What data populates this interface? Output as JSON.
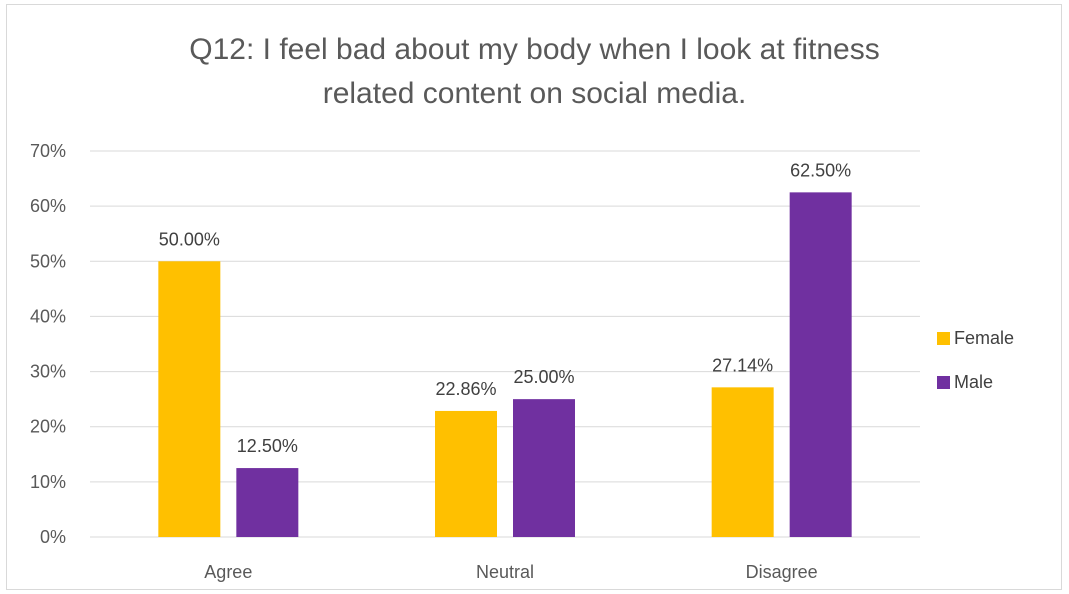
{
  "chart_data": {
    "type": "bar",
    "title": "Q12: I feel bad about my body when I look at fitness\nrelated content on social media.",
    "categories": [
      "Agree",
      "Neutral",
      "Disagree"
    ],
    "series": [
      {
        "name": "Female",
        "color": "#FFC000",
        "values": [
          50.0,
          22.86,
          27.14
        ],
        "labels": [
          "50.00%",
          "22.86%",
          "27.14%"
        ]
      },
      {
        "name": "Male",
        "color": "#7030A0",
        "values": [
          12.5,
          25.0,
          62.5
        ],
        "labels": [
          "12.50%",
          "25.00%",
          "62.50%"
        ]
      }
    ],
    "ylim": [
      0,
      70
    ],
    "yticks": [
      "0%",
      "10%",
      "20%",
      "30%",
      "40%",
      "50%",
      "60%",
      "70%"
    ],
    "grid": true,
    "legend": "right",
    "gridline_color": "#d9d9d9"
  }
}
